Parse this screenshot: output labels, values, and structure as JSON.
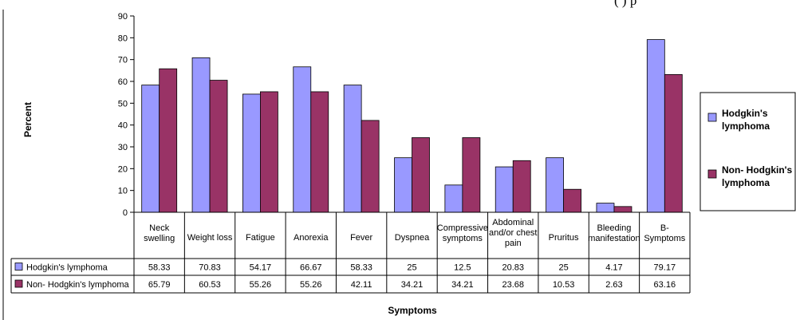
{
  "chart_data": {
    "type": "bar",
    "title": "",
    "xlabel": "Symptoms",
    "ylabel": "Percent",
    "ylim": [
      0,
      90
    ],
    "yticks": [
      "0",
      "10",
      "20",
      "30",
      "40",
      "50",
      "60",
      "70",
      "80",
      "90"
    ],
    "grid": false,
    "legend_position": "right",
    "data_table": true,
    "categories": [
      [
        "Neck",
        "swelling"
      ],
      [
        "Weight loss"
      ],
      [
        "Fatigue"
      ],
      [
        "Anorexia"
      ],
      [
        "Fever"
      ],
      [
        "Dyspnea"
      ],
      [
        "Compressive",
        "symptoms"
      ],
      [
        "Abdominal",
        "and/or chest",
        "pain"
      ],
      [
        "Pruritus"
      ],
      [
        "Bleeding",
        "manifestation"
      ],
      [
        "B-",
        "Symptoms"
      ]
    ],
    "series": [
      {
        "name": "Hodgkin's lymphoma",
        "legend_label": [
          "Hodgkin's",
          "lymphoma"
        ],
        "table_label": "Hodgkin's lymphoma",
        "color": "#9999ff",
        "values": [
          58.33,
          70.83,
          54.17,
          66.67,
          58.33,
          25,
          12.5,
          20.83,
          25,
          4.17,
          79.17
        ],
        "display": [
          "58.33",
          "70.83",
          "54.17",
          "66.67",
          "58.33",
          "25",
          "12.5",
          "20.83",
          "25",
          "4.17",
          "79.17"
        ]
      },
      {
        "name": "Non- Hodgkin's lymphoma",
        "legend_label": [
          "Non- Hodgkin's",
          "lymphoma"
        ],
        "table_label": "Non- Hodgkin's lymphoma",
        "color": "#993366",
        "values": [
          65.79,
          60.53,
          55.26,
          55.26,
          42.11,
          34.21,
          34.21,
          23.68,
          10.53,
          2.63,
          63.16
        ],
        "display": [
          "65.79",
          "60.53",
          "55.26",
          "55.26",
          "42.11",
          "34.21",
          "34.21",
          "23.68",
          "10.53",
          "2.63",
          "63.16"
        ]
      }
    ]
  },
  "page": {
    "top_text_fragment": "(  )               p"
  }
}
